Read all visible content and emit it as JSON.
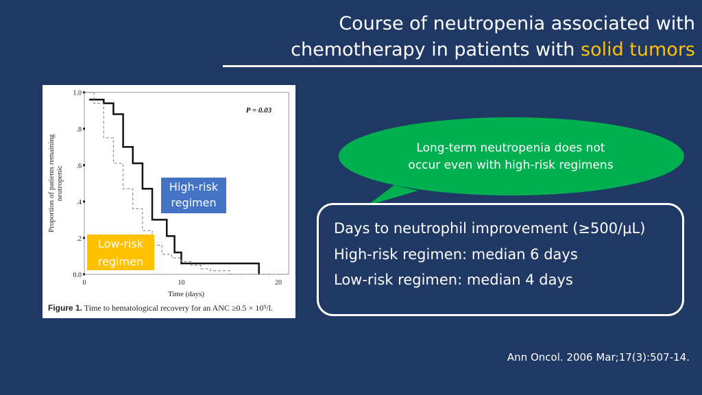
{
  "title": {
    "line1": "Course of neutropenia associated with",
    "line2_prefix": "chemotherapy in patients with ",
    "line2_highlight": "solid tumors"
  },
  "colors": {
    "background": "#1f3864",
    "highlight": "#ffc000",
    "callout": "#00b050",
    "high_risk_label": "#4472c4",
    "low_risk_label": "#ffc000"
  },
  "figure": {
    "caption_bold": "Figure 1.",
    "caption_text": " Time to hematological recovery for an ANC ≥0.5 × 10⁹/l.",
    "high_risk_label_1": "High-risk",
    "high_risk_label_2": "regimen",
    "low_risk_label_1": "Low-risk",
    "low_risk_label_2": "regimen"
  },
  "chart_data": {
    "type": "line",
    "subtype": "kaplan-meier step",
    "xlabel": "Time (days)",
    "ylabel": "Proportion of patients remaining neutropenic",
    "annotation": "P = 0.03",
    "xlim": [
      0,
      21
    ],
    "ylim": [
      0,
      1
    ],
    "xticks": [
      "0",
      "10",
      "20"
    ],
    "yticks": [
      "0.0",
      ".2",
      ".4",
      ".6",
      ".8",
      "1.0"
    ],
    "series": [
      {
        "name": "High-risk regimen",
        "style": "solid",
        "x": [
          0.5,
          2,
          3,
          4,
          5,
          6,
          7,
          8.5,
          9.3,
          10,
          18,
          18
        ],
        "y": [
          0.96,
          0.94,
          0.88,
          0.7,
          0.61,
          0.47,
          0.3,
          0.21,
          0.12,
          0.06,
          0.06,
          0
        ]
      },
      {
        "name": "Low-risk regimen",
        "style": "dashed",
        "x": [
          0,
          1,
          2,
          3,
          4,
          5,
          6,
          7,
          8,
          9,
          10,
          11,
          12,
          13,
          15,
          21
        ],
        "y": [
          1.0,
          0.94,
          0.75,
          0.61,
          0.47,
          0.36,
          0.24,
          0.16,
          0.11,
          0.09,
          0.07,
          0.05,
          0.03,
          0.02,
          0.0,
          0.0
        ]
      }
    ]
  },
  "callout": {
    "line1": "Long-term neutropenia does not",
    "line2": "occur even with high-risk regimens"
  },
  "box": {
    "line1": "Days to neutrophil improvement (≥500/μL)",
    "line2": "High-risk regimen: median 6 days",
    "line3": "Low-risk regimen: median 4 days"
  },
  "citation": "Ann Oncol. 2006 Mar;17(3):507-14."
}
